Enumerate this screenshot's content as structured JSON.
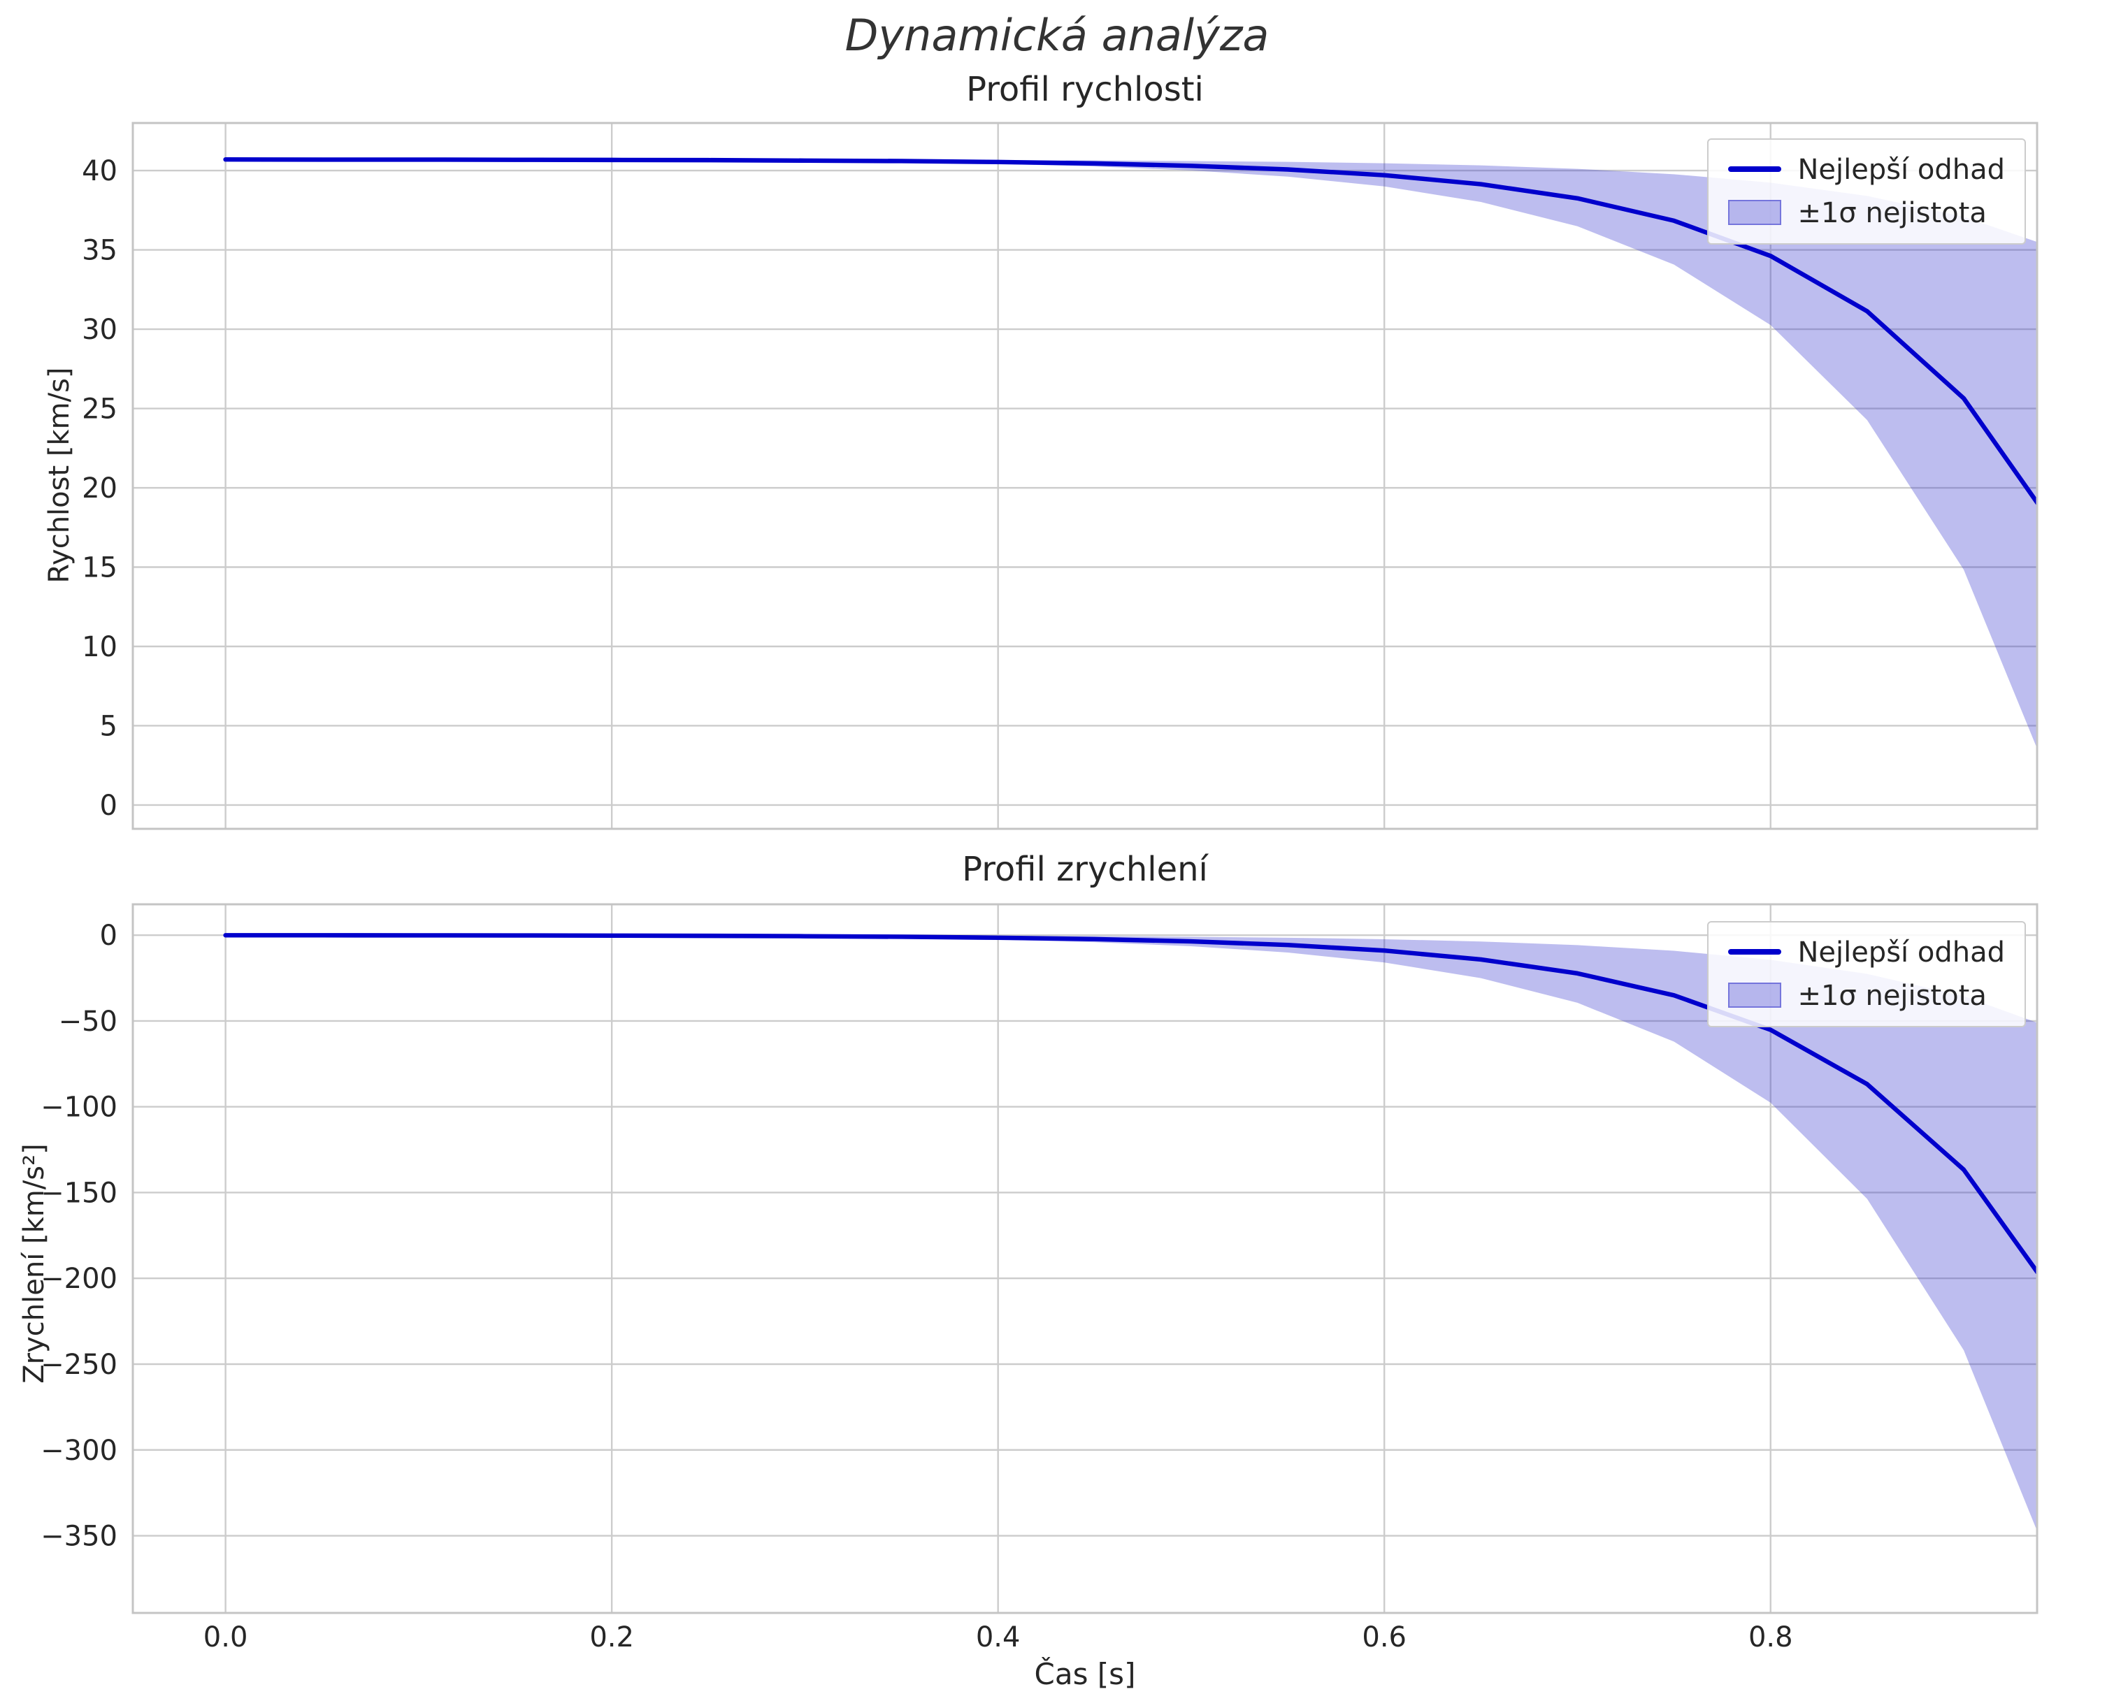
{
  "figure": {
    "suptitle": "Dynamická analýza"
  },
  "style": {
    "line_color": "#0000cc",
    "band_fill": "#3333cc",
    "band_opacity": 0.32,
    "band_edge_opacity": 0.5,
    "grid_color": "#cccccc",
    "spine_color": "#c4c4c4",
    "text_color": "#262626",
    "background": "#ffffff"
  },
  "chart_data": [
    {
      "type": "line",
      "title": "Profil rychlosti",
      "ylabel": "Rychlost [km/s]",
      "xlabel": "",
      "grid": true,
      "legend_position": "upper right",
      "x": [
        0.0,
        0.05,
        0.1,
        0.15,
        0.2,
        0.25,
        0.3,
        0.35,
        0.4,
        0.45,
        0.5,
        0.55,
        0.6,
        0.65,
        0.7,
        0.75,
        0.8,
        0.85,
        0.9,
        0.95
      ],
      "series": [
        {
          "name": "Nejlepší odhad",
          "values": [
            40.7,
            40.69,
            40.69,
            40.68,
            40.67,
            40.66,
            40.63,
            40.6,
            40.54,
            40.45,
            40.3,
            40.07,
            39.71,
            39.14,
            38.25,
            36.84,
            34.62,
            31.13,
            25.64,
            17.0
          ]
        }
      ],
      "band": {
        "name": "±1σ nejistota",
        "upper": [
          40.7,
          40.7,
          40.7,
          40.7,
          40.69,
          40.69,
          40.68,
          40.68,
          40.66,
          40.64,
          40.6,
          40.55,
          40.46,
          40.33,
          40.11,
          39.77,
          39.24,
          38.4,
          37.09,
          35.0
        ],
        "lower": [
          40.69,
          40.69,
          40.68,
          40.67,
          40.65,
          40.63,
          40.59,
          40.52,
          40.42,
          40.26,
          40.01,
          39.62,
          39.0,
          38.02,
          36.49,
          34.07,
          30.26,
          24.27,
          14.84,
          0.0
        ]
      },
      "xlim": [
        -0.048,
        0.938
      ],
      "ylim": [
        -1.5,
        43
      ],
      "xticks": [
        0.0,
        0.2,
        0.4,
        0.6,
        0.8
      ],
      "yticks": [
        0,
        5,
        10,
        15,
        20,
        25,
        30,
        35,
        40
      ],
      "show_xticklabels": false
    },
    {
      "type": "line",
      "title": "Profil zrychlení",
      "ylabel": "Zrychlení [km/s²]",
      "xlabel": "Čas [s]",
      "grid": true,
      "legend_position": "upper right",
      "x": [
        0.0,
        0.05,
        0.1,
        0.15,
        0.2,
        0.25,
        0.3,
        0.35,
        0.4,
        0.45,
        0.5,
        0.55,
        0.6,
        0.65,
        0.7,
        0.75,
        0.8,
        0.85,
        0.9,
        0.95
      ],
      "series": [
        {
          "name": "Nejlepší odhad",
          "values": [
            -0.04,
            -0.06,
            -0.1,
            -0.15,
            -0.24,
            -0.38,
            -0.59,
            -0.93,
            -1.46,
            -2.3,
            -3.63,
            -5.71,
            -8.98,
            -14.14,
            -22.26,
            -35.04,
            -55.16,
            -86.81,
            -136.64,
            -215.0
          ]
        }
      ],
      "band": {
        "name": "±1σ nejistota",
        "upper": [
          -0.01,
          -0.02,
          -0.03,
          -0.04,
          -0.06,
          -0.1,
          -0.15,
          -0.24,
          -0.38,
          -0.6,
          -0.94,
          -1.48,
          -2.34,
          -3.68,
          -5.79,
          -9.11,
          -14.34,
          -22.57,
          -35.53,
          -55.9
        ],
        "lower": [
          -0.07,
          -0.11,
          -0.17,
          -0.27,
          -0.42,
          -0.66,
          -1.05,
          -1.65,
          -2.59,
          -4.08,
          -6.42,
          -10.1,
          -15.9,
          -25.02,
          -39.4,
          -62.02,
          -97.63,
          -153.65,
          -241.85,
          -380.55
        ]
      },
      "xlim": [
        -0.048,
        0.938
      ],
      "ylim": [
        -395,
        18
      ],
      "xticks": [
        0.0,
        0.2,
        0.4,
        0.6,
        0.8
      ],
      "yticks": [
        -350,
        -300,
        -250,
        -200,
        -150,
        -100,
        -50,
        0
      ],
      "show_xticklabels": true
    }
  ]
}
